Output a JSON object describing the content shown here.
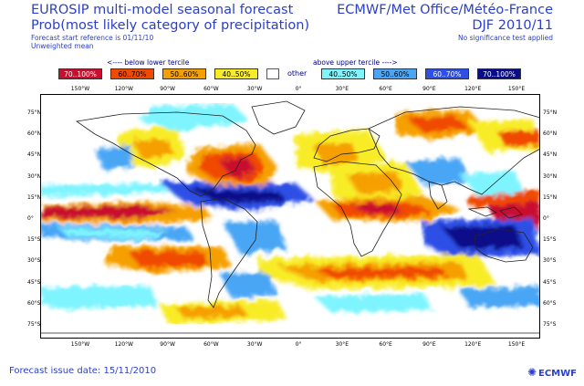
{
  "header": {
    "left_line1": "EUROSIP multi-model seasonal forecast",
    "left_line2": "Prob(most likely category of precipitation)",
    "left_small1": "Forecast start reference is 01/11/10",
    "left_small2": "Unweighted mean",
    "right_line1": "ECMWF/Met Office/Météo-France",
    "right_line2": "DJF 2010/11",
    "right_small": "No significance test applied"
  },
  "legend": {
    "below_label": "<---- below lower tercile",
    "above_label": "above upper tercile ---->",
    "other_label": "other",
    "items": [
      {
        "label": "70..100%",
        "color": "#c8102e"
      },
      {
        "label": "60..70%",
        "color": "#f04a00"
      },
      {
        "label": "50..60%",
        "color": "#f5a000"
      },
      {
        "label": "40..50%",
        "color": "#f8ec28"
      },
      {
        "label": "40..50%",
        "color": "#7ef4ff"
      },
      {
        "label": "50..60%",
        "color": "#4aa6f5"
      },
      {
        "label": "60..70%",
        "color": "#2f50e6"
      },
      {
        "label": "70..100%",
        "color": "#0a0c8a"
      }
    ]
  },
  "map": {
    "lon_labels": [
      "150°W",
      "120°W",
      "90°W",
      "60°W",
      "30°W",
      "0°",
      "30°E",
      "60°E",
      "90°E",
      "120°E",
      "150°E"
    ],
    "lat_labels": [
      "75°N",
      "60°N",
      "45°N",
      "30°N",
      "15°N",
      "0°",
      "15°S",
      "30°S",
      "45°S",
      "60°S",
      "75°S"
    ]
  },
  "footer": {
    "issue_date": "Forecast issue date: 15/11/2010",
    "logo_text": "ECMWF",
    "logo_icon": "ecmwf-logo-icon"
  }
}
